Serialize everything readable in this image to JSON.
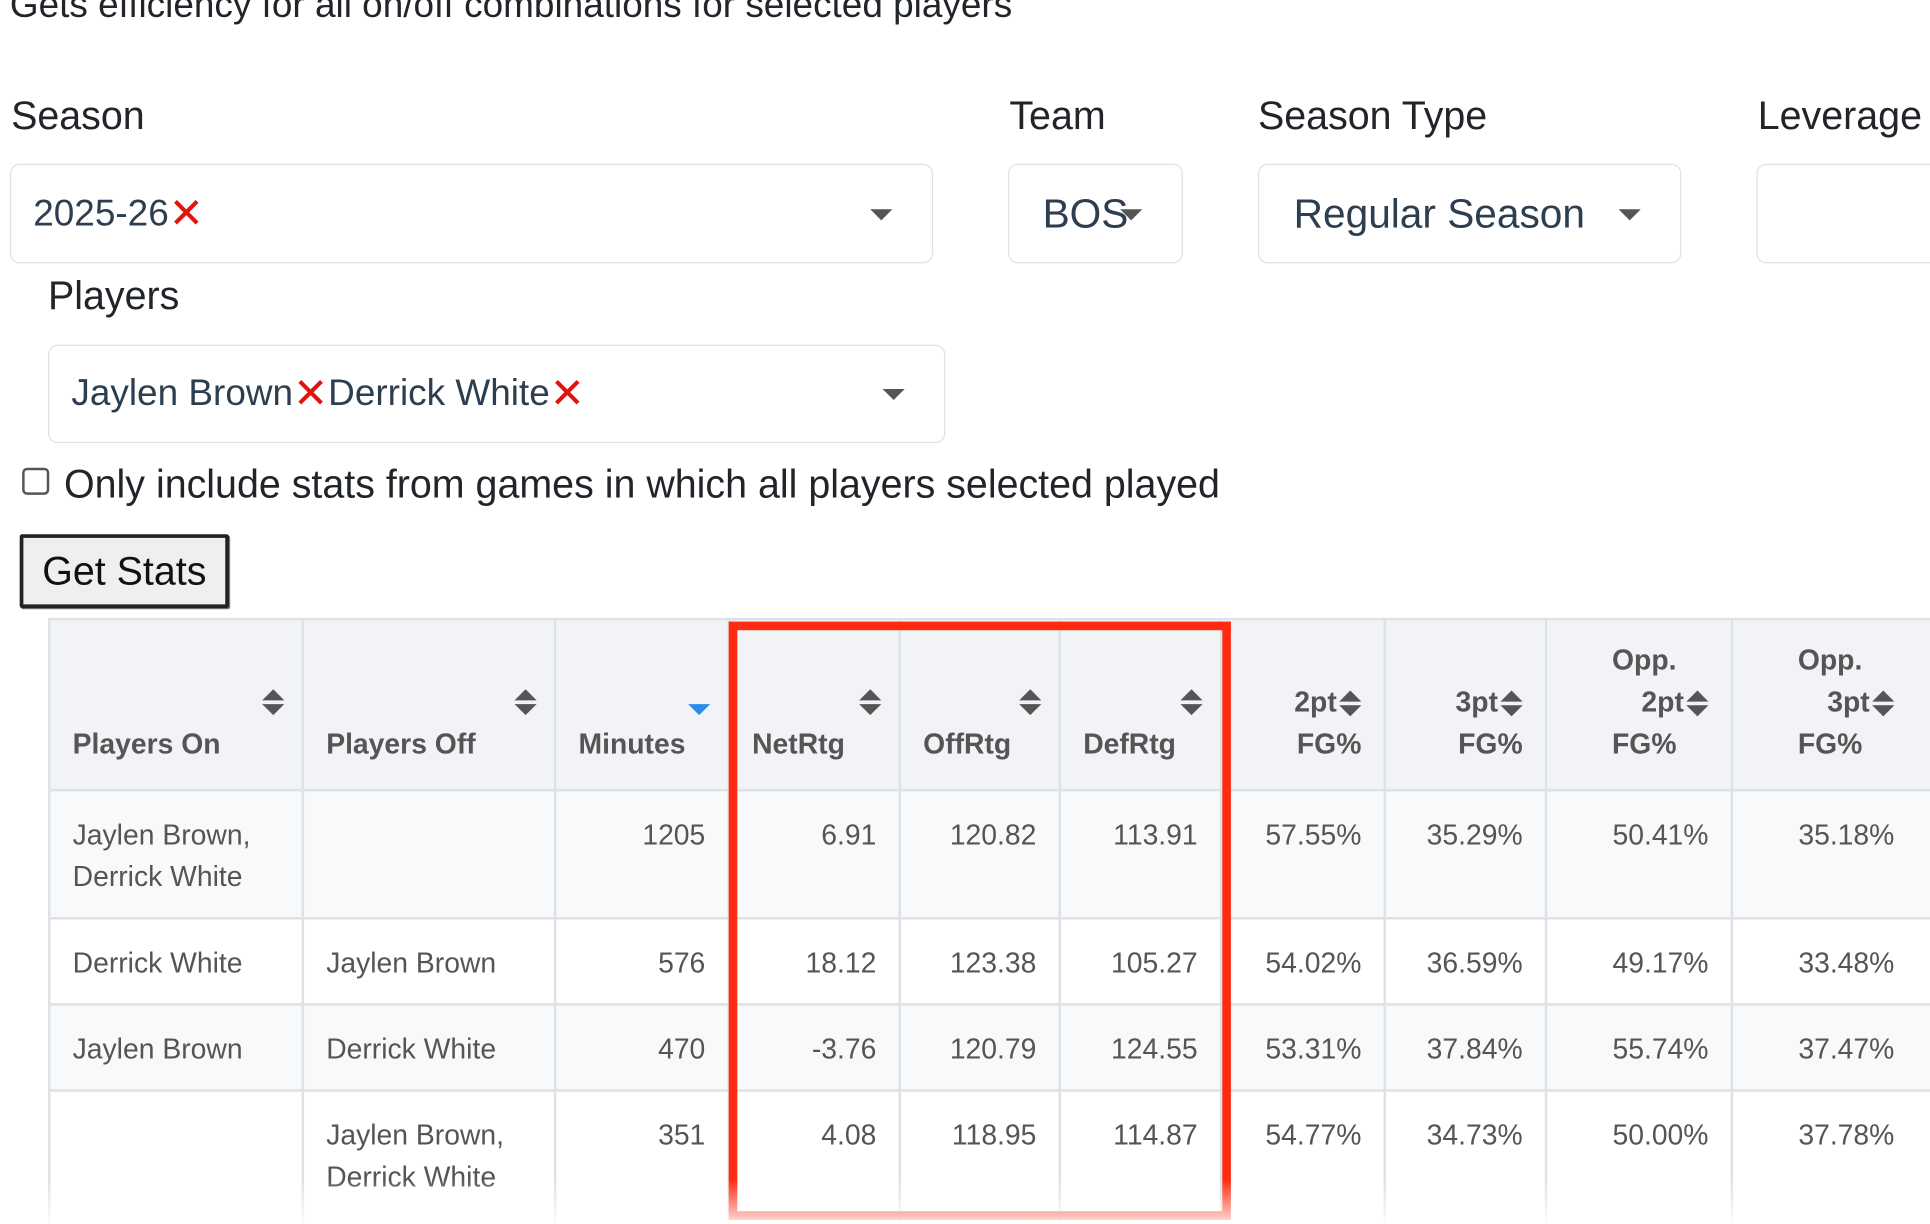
{
  "subtitle": "Gets efficiency for all on/off combinations for selected players",
  "filters": {
    "season": {
      "label": "Season",
      "value": "2025-26"
    },
    "team": {
      "label": "Team",
      "value": "BOS"
    },
    "season_type": {
      "label": "Season Type",
      "value": "Regular Season"
    },
    "leverage": {
      "label": "Leverage",
      "value": ""
    },
    "players": {
      "label": "Players",
      "values": [
        "Jaylen Brown",
        "Derrick White"
      ]
    }
  },
  "checkbox": {
    "label": "Only include stats from games in which all players selected played",
    "checked": false
  },
  "button": {
    "label": "Get Stats"
  },
  "table": {
    "headers": {
      "players_on": "Players On",
      "players_off": "Players Off",
      "minutes": "Minutes",
      "netrtg": "NetRtg",
      "offrtg": "OffRtg",
      "defrtg": "DefRtg",
      "fg2_l1": "2pt",
      "fg2_l2": "FG%",
      "fg3_l1": "3pt",
      "fg3_l2": "FG%",
      "opp2_l1": "Opp.",
      "opp2_l2": "2pt",
      "opp2_l3": "FG%",
      "opp3_l1": "Opp.",
      "opp3_l2": "3pt",
      "opp3_l3": "FG%"
    },
    "sorted_by": "Minutes",
    "sort_direction": "descending",
    "rows": [
      {
        "on": "Jaylen Brown, Derrick White",
        "off": "",
        "minutes": "1205",
        "netrtg": "6.91",
        "offrtg": "120.82",
        "defrtg": "113.91",
        "fg2": "57.55%",
        "fg3": "35.29%",
        "opp2": "50.41%",
        "opp3": "35.18%"
      },
      {
        "on": "Derrick White",
        "off": "Jaylen Brown",
        "minutes": "576",
        "netrtg": "18.12",
        "offrtg": "123.38",
        "defrtg": "105.27",
        "fg2": "54.02%",
        "fg3": "36.59%",
        "opp2": "49.17%",
        "opp3": "33.48%"
      },
      {
        "on": "Jaylen Brown",
        "off": "Derrick White",
        "minutes": "470",
        "netrtg": "-3.76",
        "offrtg": "120.79",
        "defrtg": "124.55",
        "fg2": "53.31%",
        "fg3": "37.84%",
        "opp2": "55.74%",
        "opp3": "37.47%"
      },
      {
        "on": "",
        "off": "Jaylen Brown, Derrick White",
        "minutes": "351",
        "netrtg": "4.08",
        "offrtg": "118.95",
        "defrtg": "114.87",
        "fg2": "54.77%",
        "fg3": "34.73%",
        "opp2": "50.00%",
        "opp3": "37.78%"
      }
    ]
  },
  "colors": {
    "highlight_border": "#ff2a12",
    "remove_icon": "#e0140f",
    "active_sort": "#2b8cf0"
  }
}
